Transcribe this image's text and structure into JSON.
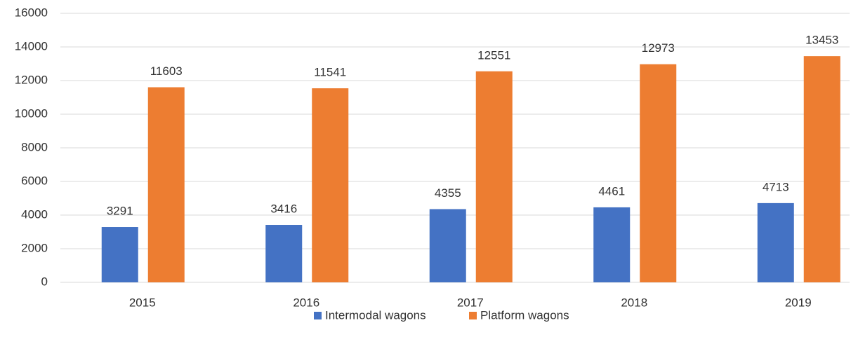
{
  "chart_data": {
    "type": "bar",
    "categories": [
      "2015",
      "2016",
      "2017",
      "2018",
      "2019"
    ],
    "series": [
      {
        "name": "Intermodal wagons",
        "color": "#4472c4",
        "values": [
          3291,
          3416,
          4355,
          4461,
          4713
        ]
      },
      {
        "name": "Platform wagons",
        "color": "#ed7d31",
        "values": [
          11603,
          11541,
          12551,
          12973,
          13453
        ]
      }
    ],
    "ylim": [
      0,
      16000
    ],
    "yticks": [
      0,
      2000,
      4000,
      6000,
      8000,
      10000,
      12000,
      14000,
      16000
    ],
    "grid": true,
    "legend": "bottom"
  }
}
